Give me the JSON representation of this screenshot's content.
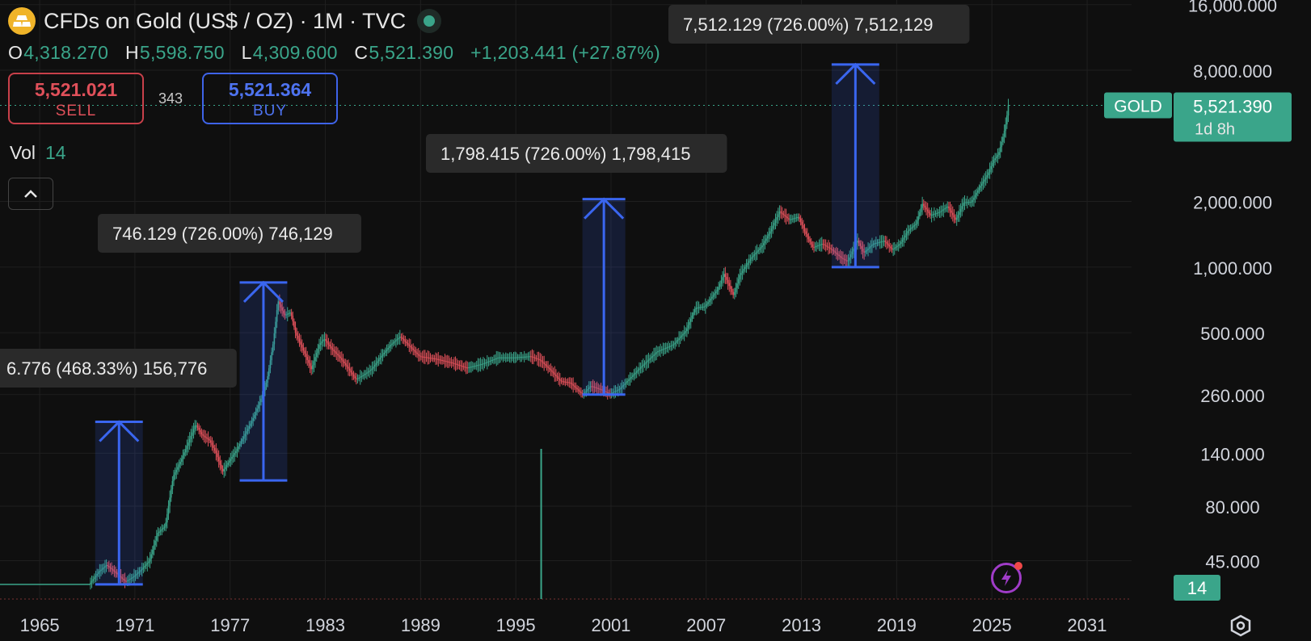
{
  "header": {
    "title": "CFDs on Gold (US$ / OZ) · 1M · TVC",
    "ohlc": [
      {
        "key": "O",
        "value": "4,318.270"
      },
      {
        "key": "H",
        "value": "5,598.750"
      },
      {
        "key": "L",
        "value": "4,309.600"
      },
      {
        "key": "C",
        "value": "5,521.390"
      }
    ],
    "change": "+1,203.441 (+27.87%)"
  },
  "trade": {
    "sell_price": "5,521.021",
    "sell_label": "SELL",
    "spread": "343",
    "buy_price": "5,521.364",
    "buy_label": "BUY"
  },
  "volume": {
    "label": "Vol",
    "value": "14"
  },
  "colors": {
    "up": "#3aa58a",
    "down": "#e0505a",
    "measure": "#3a66f0",
    "background": "#0f0f0f",
    "grid": "#1f1f1f"
  },
  "icons": {
    "logo": "gold-bars-icon",
    "live": "market-open-dot-icon",
    "collapse": "chevron-up-icon",
    "bolt": "lightning-icon",
    "settings": "hexagon-settings-icon"
  },
  "chart_data": {
    "type": "candlestick-log",
    "symbol": "GOLD",
    "interval": "1M",
    "last_price": "5,521.390",
    "countdown": "1d 8h",
    "volume_badge": "14",
    "y_scale": "log",
    "y_ticks": [
      {
        "v": 16000,
        "label": "16,000.000"
      },
      {
        "v": 8000,
        "label": "8,000.000"
      },
      {
        "v": 2000,
        "label": "2,000.000"
      },
      {
        "v": 1000,
        "label": "1,000.000"
      },
      {
        "v": 500,
        "label": "500.000"
      },
      {
        "v": 260,
        "label": "260.000"
      },
      {
        "v": 140,
        "label": "140.000"
      },
      {
        "v": 80,
        "label": "80.000"
      },
      {
        "v": 45,
        "label": "45.000"
      }
    ],
    "x_ticks": [
      "1965",
      "1971",
      "1977",
      "1983",
      "1989",
      "1995",
      "2001",
      "2007",
      "2013",
      "2019",
      "2025",
      "2031"
    ],
    "x_range": [
      1962.5,
      2033.8
    ],
    "y_range": [
      30,
      16800
    ],
    "price_path": [
      [
        1962.5,
        35
      ],
      [
        1968.2,
        35
      ],
      [
        1968.8,
        40
      ],
      [
        1969.3,
        43
      ],
      [
        1969.8,
        40
      ],
      [
        1970.5,
        36
      ],
      [
        1971.0,
        38
      ],
      [
        1971.5,
        41
      ],
      [
        1972.0,
        45
      ],
      [
        1972.5,
        60
      ],
      [
        1973.0,
        65
      ],
      [
        1973.5,
        110
      ],
      [
        1974.0,
        130
      ],
      [
        1974.5,
        160
      ],
      [
        1974.9,
        190
      ],
      [
        1975.3,
        170
      ],
      [
        1975.8,
        160
      ],
      [
        1976.2,
        140
      ],
      [
        1976.6,
        115
      ],
      [
        1976.9,
        125
      ],
      [
        1977.5,
        145
      ],
      [
        1978.0,
        170
      ],
      [
        1978.5,
        200
      ],
      [
        1979.0,
        245
      ],
      [
        1979.4,
        300
      ],
      [
        1979.8,
        450
      ],
      [
        1980.1,
        700
      ],
      [
        1980.5,
        600
      ],
      [
        1980.9,
        620
      ],
      [
        1981.2,
        500
      ],
      [
        1981.6,
        430
      ],
      [
        1982.2,
        340
      ],
      [
        1982.7,
        440
      ],
      [
        1983.0,
        470
      ],
      [
        1983.5,
        420
      ],
      [
        1984.0,
        385
      ],
      [
        1984.5,
        345
      ],
      [
        1985.0,
        305
      ],
      [
        1985.5,
        320
      ],
      [
        1986.0,
        340
      ],
      [
        1986.6,
        390
      ],
      [
        1987.2,
        440
      ],
      [
        1987.8,
        480
      ],
      [
        1988.3,
        440
      ],
      [
        1989.0,
        390
      ],
      [
        1990.0,
        380
      ],
      [
        1991.0,
        365
      ],
      [
        1992.0,
        345
      ],
      [
        1993.0,
        360
      ],
      [
        1994.0,
        385
      ],
      [
        1995.0,
        385
      ],
      [
        1996.0,
        390
      ],
      [
        1996.6,
        375
      ],
      [
        1997.3,
        335
      ],
      [
        1997.9,
        300
      ],
      [
        1998.5,
        295
      ],
      [
        1999.3,
        260
      ],
      [
        1999.8,
        285
      ],
      [
        2000.4,
        275
      ],
      [
        2001.0,
        262
      ],
      [
        2001.6,
        275
      ],
      [
        2002.3,
        310
      ],
      [
        2003.0,
        350
      ],
      [
        2004.0,
        410
      ],
      [
        2005.0,
        440
      ],
      [
        2005.8,
        510
      ],
      [
        2006.4,
        650
      ],
      [
        2007.0,
        660
      ],
      [
        2007.8,
        790
      ],
      [
        2008.2,
        930
      ],
      [
        2008.8,
        740
      ],
      [
        2009.2,
        920
      ],
      [
        2009.9,
        1100
      ],
      [
        2010.6,
        1250
      ],
      [
        2011.1,
        1450
      ],
      [
        2011.7,
        1800
      ],
      [
        2012.3,
        1650
      ],
      [
        2012.9,
        1700
      ],
      [
        2013.3,
        1450
      ],
      [
        2013.8,
        1230
      ],
      [
        2014.4,
        1280
      ],
      [
        2015.0,
        1200
      ],
      [
        2015.6,
        1100
      ],
      [
        2016.0,
        1060
      ],
      [
        2016.6,
        1330
      ],
      [
        2017.0,
        1160
      ],
      [
        2017.6,
        1280
      ],
      [
        2018.3,
        1320
      ],
      [
        2018.8,
        1200
      ],
      [
        2019.3,
        1280
      ],
      [
        2019.8,
        1470
      ],
      [
        2020.3,
        1580
      ],
      [
        2020.7,
        1950
      ],
      [
        2021.2,
        1730
      ],
      [
        2021.8,
        1790
      ],
      [
        2022.3,
        1900
      ],
      [
        2022.8,
        1640
      ],
      [
        2023.3,
        1980
      ],
      [
        2023.8,
        1990
      ],
      [
        2024.3,
        2320
      ],
      [
        2024.8,
        2650
      ],
      [
        2025.2,
        3100
      ],
      [
        2025.5,
        3300
      ],
      [
        2025.8,
        4000
      ],
      [
        2026.0,
        4700
      ],
      [
        2026.1,
        5521
      ]
    ],
    "measurements": [
      {
        "label": "6.776 (468.33%) 156,776",
        "from": 35,
        "to": 195,
        "x0": 1968.5,
        "x1": 1971.5,
        "box_left": -10,
        "box_top": 432
      },
      {
        "label": "746.129 (726.00%) 746,129",
        "from": 105,
        "to": 850,
        "x0": 1977.6,
        "x1": 1980.6,
        "box_left": 121,
        "box_top": 265
      },
      {
        "label": "1,798.415 (726.00%) 1,798,415",
        "from": 260,
        "to": 2050,
        "x0": 1999.2,
        "x1": 2001.9,
        "box_left": 527,
        "box_top": 166
      },
      {
        "label": "7,512.129 (726.00%) 7,512,129",
        "from": 1000,
        "to": 8500,
        "x0": 2014.9,
        "x1": 2017.9,
        "box_left": 827,
        "box_top": 6
      }
    ],
    "volume_spike": {
      "x": 1996.6
    }
  }
}
